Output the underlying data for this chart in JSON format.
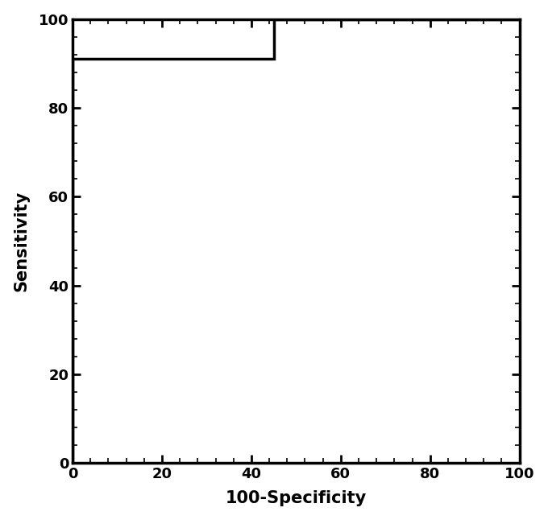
{
  "x": [
    0,
    0,
    45,
    45,
    100
  ],
  "y": [
    0,
    91,
    91,
    100,
    100
  ],
  "line_color": "#000000",
  "line_width": 2.5,
  "xlabel": "100-Specificity",
  "ylabel": "Sensitivity",
  "xlim": [
    0,
    100
  ],
  "ylim": [
    0,
    100
  ],
  "xticks": [
    0,
    20,
    40,
    60,
    80,
    100
  ],
  "yticks": [
    0,
    20,
    40,
    60,
    80,
    100
  ],
  "xlabel_fontsize": 15,
  "ylabel_fontsize": 15,
  "tick_fontsize": 13,
  "background_color": "#ffffff",
  "spine_linewidth": 2.5,
  "minor_per_major": 5
}
